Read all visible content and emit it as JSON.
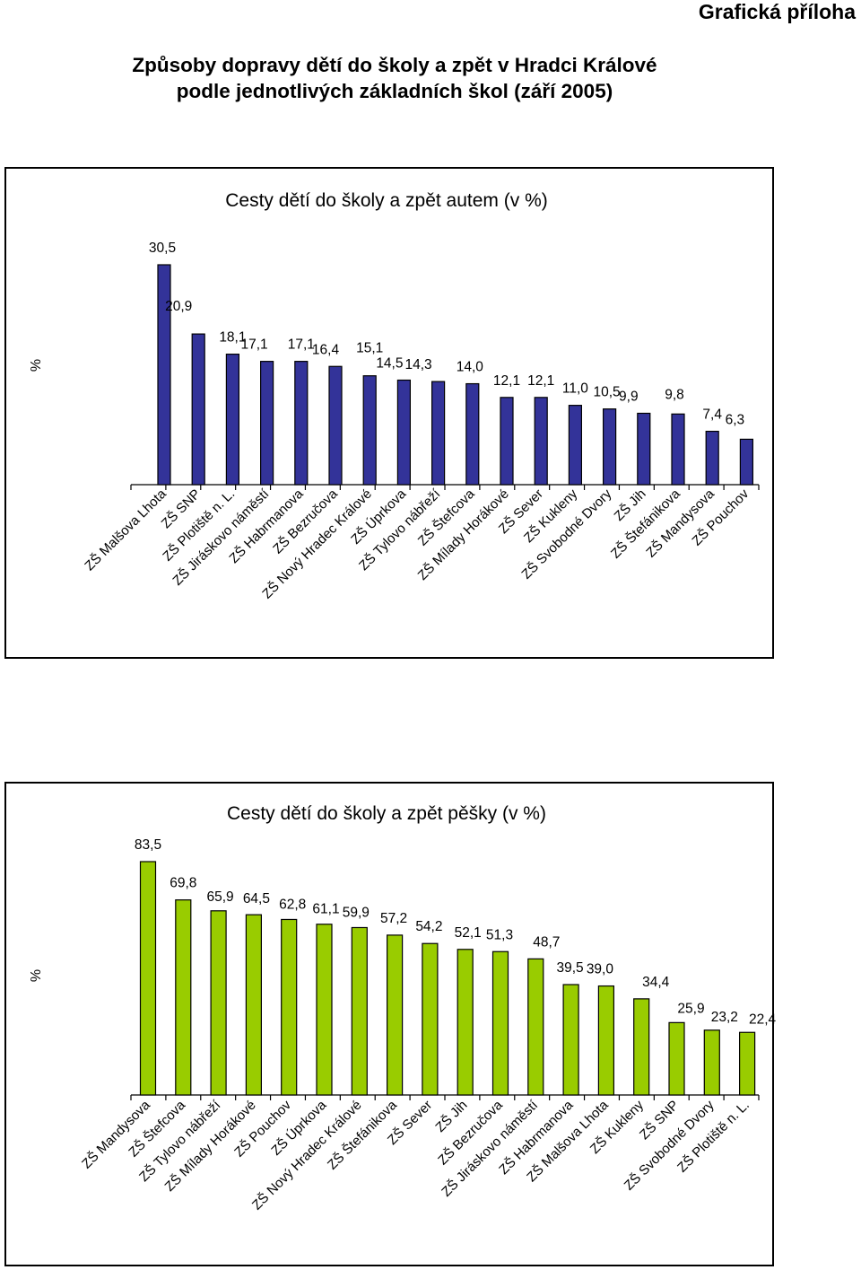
{
  "header": {
    "tag": "Grafická příloha",
    "title_line1": "Způsoby dopravy dětí do školy a zpět  v Hradci Králové",
    "title_line2": "podle jednotlivých základních škol (září 2005)"
  },
  "colors": {
    "car_bar": "#333399",
    "walk_bar": "#99cc00",
    "frame": "#000000"
  },
  "chart_data": [
    {
      "type": "bar",
      "title": "Cesty dětí do školy a zpět autem (v %)",
      "ylabel": "%",
      "xlabel": "",
      "ylim": [
        0,
        32
      ],
      "grid": false,
      "legend": "none",
      "categories": [
        "ZŠ Malšova Lhota",
        "ZŠ SNP",
        "ZŠ Plotiště n. L.",
        "ZŠ Jiráskovo náměstí",
        "ZŠ Habrmanova",
        "ZŠ Bezručova",
        "ZŠ Nový Hradec Králové",
        "ZŠ Úprkova",
        "ZŠ Tylovo nábřeží",
        "ZŠ Štefcova",
        "ZŠ Mílady Horákové",
        "ZŠ Sever",
        "ZŠ Kukleny",
        "ZŠ Svobodné Dvory",
        "ZŠ Jih",
        "ZŠ Štefánikova",
        "ZŠ Mandysova",
        "ZŠ Pouchov"
      ],
      "values": [
        30.5,
        20.9,
        18.1,
        17.1,
        17.1,
        16.4,
        15.1,
        14.5,
        14.3,
        14.0,
        12.1,
        12.1,
        11.0,
        10.5,
        9.9,
        9.8,
        7.4,
        6.3
      ],
      "value_labels": [
        "30,5",
        "20,9",
        "18,1",
        "17,1",
        "17,1",
        "16,4",
        "15,1",
        "14,5",
        "14,3",
        "14,0",
        "12,1",
        "12,1",
        "11,0",
        "10,5",
        "9,9",
        "9,8",
        "7,4",
        "6,3"
      ]
    },
    {
      "type": "bar",
      "title": "Cesty dětí do školy a zpět pěšky (v %)",
      "ylabel": "%",
      "xlabel": "",
      "ylim": [
        0,
        88
      ],
      "grid": false,
      "legend": "none",
      "categories": [
        "ZŠ Mandysova",
        "ZŠ Štefcova",
        "ZŠ Tylovo nábřeží",
        "ZŠ Mílady Horákové",
        "ZŠ Pouchov",
        "ZŠ Úprkova",
        "ZŠ Nový Hradec Králové",
        "ZŠ Štefánikova",
        "ZŠ Sever",
        "ZŠ Jih",
        "ZŠ Bezručova",
        "ZŠ Jiráskovo náměstí",
        "ZŠ Habrmanova",
        "ZŠ Malšova Lhota",
        "ZŠ Kukleny",
        "ZŠ SNP",
        "ZŠ Svobodné Dvory",
        "ZŠ Plotiště n. L."
      ],
      "values": [
        83.5,
        69.8,
        65.9,
        64.5,
        62.8,
        61.1,
        59.9,
        57.2,
        54.2,
        52.1,
        51.3,
        48.7,
        39.5,
        39.0,
        34.4,
        25.9,
        23.2,
        22.4
      ],
      "value_labels": [
        "83,5",
        "69,8",
        "65,9",
        "64,5",
        "62,8",
        "61,1",
        "59,9",
        "57,2",
        "54,2",
        "52,1",
        "51,3",
        "48,7",
        "39,5",
        "39,0",
        "34,4",
        "25,9",
        "23,2",
        "22,4"
      ]
    }
  ]
}
